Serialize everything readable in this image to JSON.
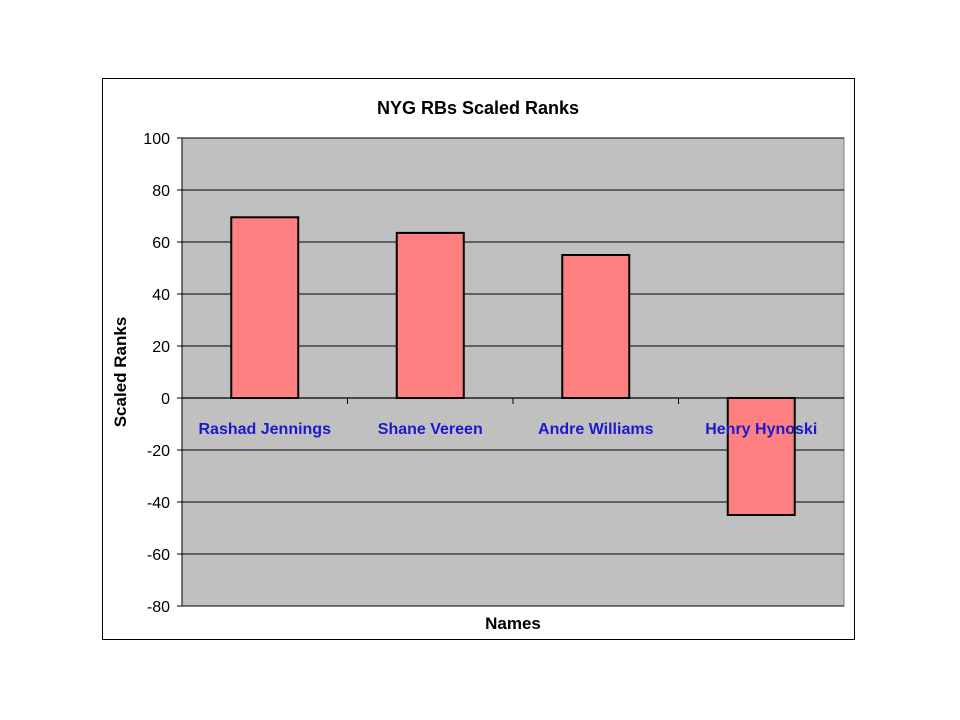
{
  "chart_data": {
    "type": "bar",
    "title": "NYG RBs Scaled Ranks",
    "xlabel": "Names",
    "ylabel": "Scaled Ranks",
    "categories": [
      "Rashad Jennings",
      "Shane Vereen",
      "Andre Williams",
      "Henry Hynoski"
    ],
    "values": [
      69.5,
      63.5,
      55,
      -45
    ],
    "ylim": [
      -80,
      100
    ],
    "yticks": [
      "100",
      "80",
      "60",
      "40",
      "20",
      "0",
      "-20",
      "-40",
      "-60",
      "-80"
    ],
    "ytick_values": [
      100,
      80,
      60,
      40,
      20,
      0,
      -20,
      -40,
      -60,
      -80
    ],
    "grid": true,
    "colors": {
      "plot_area": "#c0c0c0",
      "bar_fill": "#ff8080",
      "bar_stroke": "#000000",
      "category_label": "#1a1acc",
      "gridline": "#000000"
    }
  }
}
